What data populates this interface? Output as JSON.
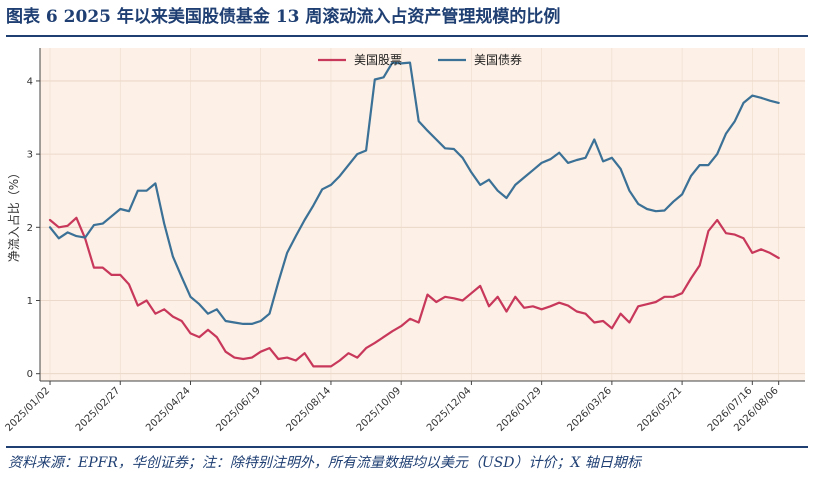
{
  "figure": {
    "title": "图表 6    2025 年以来美国股债基金 13 周滚动流入占资产管理规模的比例",
    "source": "资料来源：EPFR，华创证券；注：除特别注明外，所有流量数据均以美元（USD）计价；X 轴日期标"
  },
  "colors": {
    "title": "#1f3f73",
    "plot_bg": "#fdf0e6",
    "equity": "#c8385a",
    "bond": "#3b7196"
  },
  "chart_data": {
    "type": "line",
    "ylabel": "净流入占比（%）",
    "ylim": [
      -0.1,
      4.45
    ],
    "yticks": [
      0,
      1,
      2,
      3,
      4
    ],
    "xlim": [
      "2024-12-25",
      "2026-08-27"
    ],
    "grid": true,
    "legend_position": "top-center",
    "x_tick_labels": [
      "2025/01/02",
      "2025/02/27",
      "2025/04/24",
      "2025/06/19",
      "2025/08/14",
      "2025/10/09",
      "2025/12/04",
      "2026/01/29",
      "2026/03/26",
      "2026/05/21",
      "2026/07/16",
      "2026/08/06"
    ],
    "x": [
      "2025-01-02",
      "2025-01-09",
      "2025-01-16",
      "2025-01-23",
      "2025-01-30",
      "2025-02-06",
      "2025-02-13",
      "2025-02-20",
      "2025-02-27",
      "2025-03-06",
      "2025-03-13",
      "2025-03-20",
      "2025-03-27",
      "2025-04-03",
      "2025-04-10",
      "2025-04-17",
      "2025-04-24",
      "2025-05-01",
      "2025-05-08",
      "2025-05-15",
      "2025-05-22",
      "2025-05-29",
      "2025-06-05",
      "2025-06-12",
      "2025-06-19",
      "2025-06-26",
      "2025-07-03",
      "2025-07-10",
      "2025-07-17",
      "2025-07-24",
      "2025-07-31",
      "2025-08-07",
      "2025-08-14",
      "2025-08-21",
      "2025-08-28",
      "2025-09-04",
      "2025-09-11",
      "2025-09-18",
      "2025-09-25",
      "2025-10-02",
      "2025-10-09",
      "2025-10-16",
      "2025-10-23",
      "2025-10-30",
      "2025-11-06",
      "2025-11-13",
      "2025-11-20",
      "2025-11-27",
      "2025-12-04",
      "2025-12-11",
      "2025-12-18",
      "2025-12-25",
      "2026-01-01",
      "2026-01-08",
      "2026-01-15",
      "2026-01-22",
      "2026-01-29",
      "2026-02-05",
      "2026-02-12",
      "2026-02-19",
      "2026-02-26",
      "2026-03-05",
      "2026-03-12",
      "2026-03-19",
      "2026-03-26",
      "2026-04-02",
      "2026-04-09",
      "2026-04-16",
      "2026-04-23",
      "2026-04-30",
      "2026-05-07",
      "2026-05-14",
      "2026-05-21",
      "2026-05-28",
      "2026-06-04",
      "2026-06-11",
      "2026-06-18",
      "2026-06-25",
      "2026-07-02",
      "2026-07-09",
      "2026-07-16",
      "2026-07-23",
      "2026-07-30",
      "2026-08-06"
    ],
    "series": [
      {
        "name": "美国股票",
        "color": "#c8385a",
        "values": [
          2.1,
          2.0,
          2.02,
          2.13,
          1.85,
          1.45,
          1.45,
          1.35,
          1.35,
          1.22,
          0.93,
          1.0,
          0.82,
          0.88,
          0.78,
          0.72,
          0.55,
          0.5,
          0.6,
          0.5,
          0.3,
          0.22,
          0.2,
          0.22,
          0.3,
          0.35,
          0.2,
          0.22,
          0.18,
          0.28,
          0.1,
          0.1,
          0.1,
          0.18,
          0.28,
          0.22,
          0.35,
          0.42,
          0.5,
          0.58,
          0.65,
          0.75,
          0.7,
          1.08,
          0.98,
          1.05,
          1.03,
          1.0,
          1.1,
          1.2,
          0.92,
          1.05,
          0.85,
          1.05,
          0.9,
          0.92,
          0.88,
          0.92,
          0.97,
          0.93,
          0.85,
          0.82,
          0.7,
          0.72,
          0.62,
          0.82,
          0.7,
          0.92,
          0.95,
          0.98,
          1.05,
          1.05,
          1.1,
          1.3,
          1.48,
          1.95,
          2.1,
          1.92,
          1.9,
          1.85,
          1.65,
          1.7,
          1.65,
          1.58
        ]
      },
      {
        "name": "美国债券",
        "color": "#3b7196",
        "values": [
          2.0,
          1.85,
          1.93,
          1.88,
          1.86,
          2.03,
          2.05,
          2.15,
          2.25,
          2.22,
          2.5,
          2.5,
          2.6,
          2.05,
          1.6,
          1.32,
          1.05,
          0.95,
          0.82,
          0.88,
          0.72,
          0.7,
          0.68,
          0.68,
          0.72,
          0.82,
          1.25,
          1.65,
          1.88,
          2.1,
          2.3,
          2.52,
          2.58,
          2.7,
          2.85,
          3.0,
          3.05,
          4.02,
          4.05,
          4.25,
          4.24,
          4.25,
          3.45,
          3.32,
          3.2,
          3.08,
          3.07,
          2.95,
          2.75,
          2.58,
          2.65,
          2.5,
          2.4,
          2.58,
          2.68,
          2.78,
          2.88,
          2.93,
          3.02,
          2.88,
          2.92,
          2.95,
          3.2,
          2.9,
          2.95,
          2.8,
          2.5,
          2.32,
          2.25,
          2.22,
          2.23,
          2.35,
          2.45,
          2.7,
          2.85,
          2.85,
          3.0,
          3.28,
          3.45,
          3.7,
          3.8,
          3.77,
          3.73,
          3.7
        ]
      }
    ]
  }
}
